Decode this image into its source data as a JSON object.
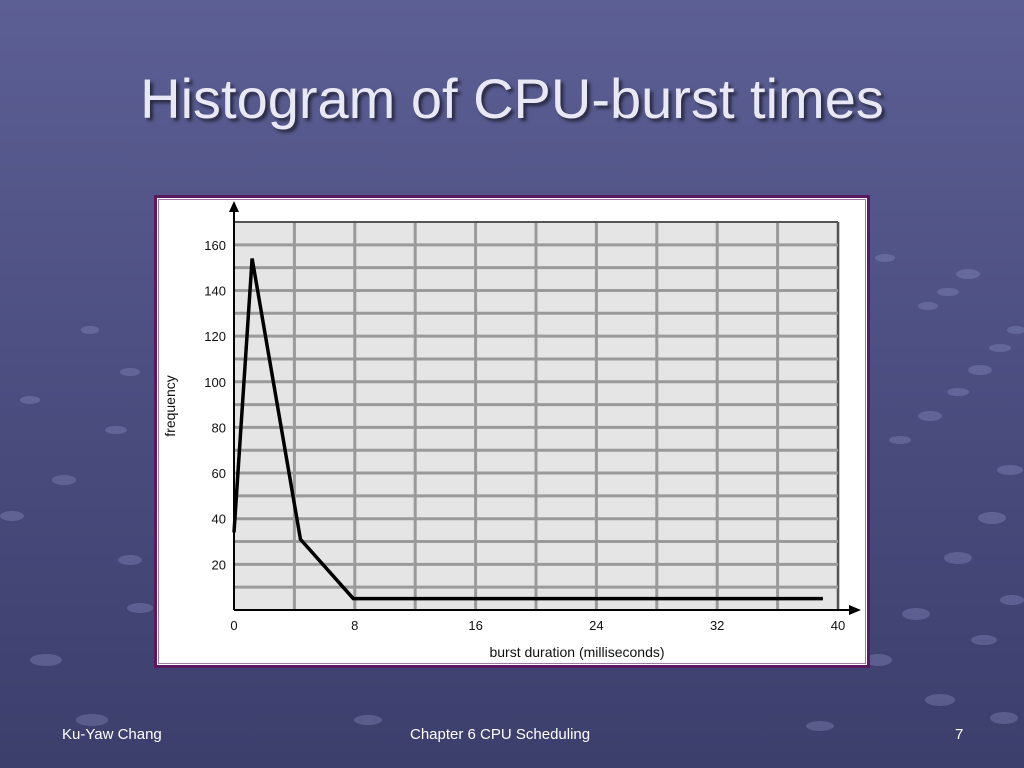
{
  "slide": {
    "title": "Histogram of CPU-burst times"
  },
  "footer": {
    "left": "Ku-Yaw Chang",
    "center": "Chapter 6 CPU Scheduling",
    "right": "7"
  },
  "colors": {
    "background": "#4f5286",
    "plot_background": "#e5e5e5",
    "grid": "#9a9a9a",
    "line": "#000000",
    "frame_border": "#5a1a62"
  },
  "chart_data": {
    "type": "line",
    "xlabel": "burst duration (milliseconds)",
    "ylabel": "frequency",
    "xlim": [
      0,
      40
    ],
    "ylim": [
      0,
      170
    ],
    "xticks": [
      0,
      8,
      16,
      24,
      32,
      40
    ],
    "yticks": [
      20,
      40,
      60,
      80,
      100,
      120,
      140,
      160
    ],
    "grid": true,
    "x": [
      0,
      1.2,
      4.4,
      7.9,
      39
    ],
    "y": [
      34,
      154,
      31,
      5,
      5
    ]
  }
}
